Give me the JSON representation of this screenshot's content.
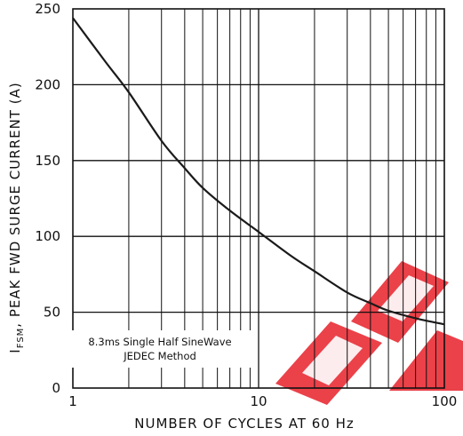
{
  "chart_data": {
    "type": "line",
    "title": "",
    "xlabel": "NUMBER OF CYCLES AT 60 Hz",
    "ylabel": {
      "main": "I",
      "subscript": "FSM",
      "rest": ", PEAK FWD SURGE CURRENT (A)"
    },
    "x_scale": "log",
    "xlim": [
      1,
      100
    ],
    "ylim": [
      0,
      250
    ],
    "x_ticks": [
      {
        "value": 1,
        "label": "1"
      },
      {
        "value": 10,
        "label": "10"
      },
      {
        "value": 100,
        "label": "100"
      }
    ],
    "y_ticks": [
      {
        "value": 0,
        "label": "0"
      },
      {
        "value": 50,
        "label": "50"
      },
      {
        "value": 100,
        "label": "100"
      },
      {
        "value": 150,
        "label": "150"
      },
      {
        "value": 200,
        "label": "200"
      },
      {
        "value": 250,
        "label": "250"
      }
    ],
    "grid": true,
    "series": [
      {
        "x": [
          1,
          1.5,
          2,
          3,
          4,
          5,
          7,
          10,
          15,
          20,
          30,
          40,
          50,
          70,
          100
        ],
        "y": [
          244,
          215,
          195,
          163,
          145,
          132,
          117,
          103,
          87,
          77,
          63,
          56,
          51,
          46,
          42
        ]
      }
    ],
    "annotation": {
      "lines": [
        "8.3ms Single Half SineWave",
        "JEDEC Method"
      ]
    }
  },
  "colors": {
    "curve": "#1a1a1a",
    "grid": "#111111",
    "watermark": "#e8202a"
  }
}
